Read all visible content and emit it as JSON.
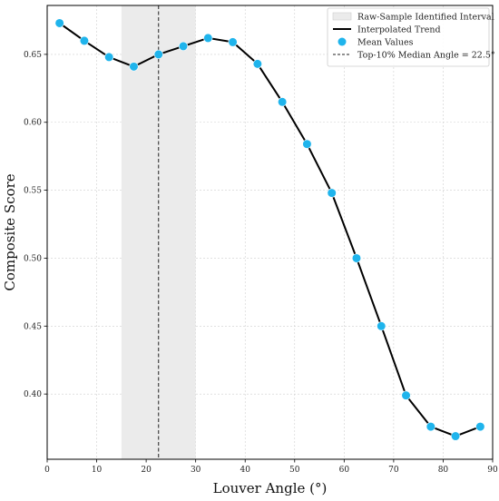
{
  "chart_data": {
    "type": "line",
    "xlabel": "Louver Angle (°)",
    "ylabel": "Composite Score",
    "xlim": [
      0,
      90
    ],
    "ylim": [
      0.352,
      0.686
    ],
    "xticks": [
      0,
      10,
      20,
      30,
      40,
      50,
      60,
      70,
      80,
      90
    ],
    "xtick_labels": [
      "0",
      "10",
      "20",
      "30",
      "40",
      "50",
      "60",
      "70",
      "80",
      "90"
    ],
    "yticks": [
      0.4,
      0.45,
      0.5,
      0.55,
      0.6,
      0.65
    ],
    "ytick_labels": [
      "0.40",
      "0.45",
      "0.50",
      "0.55",
      "0.60",
      "0.65"
    ],
    "grid": true,
    "legend_position": "top-right",
    "interval": {
      "name": "Raw-Sample Identified Interval",
      "x_range": [
        15,
        30
      ],
      "color": "#ebebeb"
    },
    "median_line": {
      "name": "Top-10% Median Angle = 22.5°",
      "x": 22.5,
      "color": "#222222"
    },
    "series": [
      {
        "name": "Interpolated Trend",
        "kind": "line",
        "color": "#000000",
        "x": [
          2.5,
          7.5,
          12.5,
          17.5,
          22.5,
          27.5,
          32.5,
          37.5,
          42.5,
          47.5,
          52.5,
          57.5,
          62.5,
          67.5,
          72.5,
          77.5,
          82.5,
          87.5
        ],
        "values": [
          0.673,
          0.66,
          0.648,
          0.641,
          0.65,
          0.656,
          0.662,
          0.659,
          0.643,
          0.615,
          0.584,
          0.548,
          0.5,
          0.45,
          0.399,
          0.376,
          0.369,
          0.376
        ]
      },
      {
        "name": "Mean Values",
        "kind": "scatter",
        "color": "#1fb4ec",
        "x": [
          2.5,
          7.5,
          12.5,
          17.5,
          22.5,
          27.5,
          32.5,
          37.5,
          42.5,
          47.5,
          52.5,
          57.5,
          62.5,
          67.5,
          72.5,
          77.5,
          82.5,
          87.5
        ],
        "values": [
          0.673,
          0.66,
          0.648,
          0.641,
          0.65,
          0.656,
          0.662,
          0.659,
          0.643,
          0.615,
          0.584,
          0.548,
          0.5,
          0.45,
          0.399,
          0.376,
          0.369,
          0.376
        ]
      }
    ]
  }
}
